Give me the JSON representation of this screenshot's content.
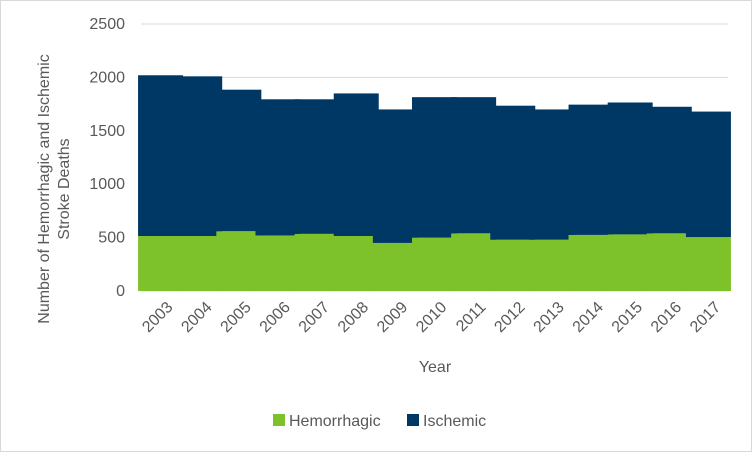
{
  "chart_data": {
    "type": "bar",
    "stacked": true,
    "title": "",
    "xlabel": "Year",
    "ylabel": "Number of Hemorrhagic and Ischemic Stroke Deaths",
    "ylim": [
      0,
      2500
    ],
    "yticks": [
      0,
      500,
      1000,
      1500,
      2000,
      2500
    ],
    "grid": true,
    "legend": "bottom",
    "categories": [
      "2003",
      "2004",
      "2005",
      "2006",
      "2007",
      "2008",
      "2009",
      "2010",
      "2011",
      "2012",
      "2013",
      "2014",
      "2015",
      "2016",
      "2017"
    ],
    "series": [
      {
        "name": "Hemorrhagic",
        "color": "#7dc12b",
        "values": [
          515,
          515,
          560,
          520,
          535,
          515,
          450,
          500,
          540,
          480,
          480,
          525,
          530,
          540,
          505
        ]
      },
      {
        "name": "Ischemic",
        "color": "#003865",
        "values": [
          1505,
          1495,
          1325,
          1275,
          1260,
          1335,
          1250,
          1315,
          1275,
          1255,
          1220,
          1220,
          1235,
          1185,
          1175
        ]
      }
    ]
  }
}
